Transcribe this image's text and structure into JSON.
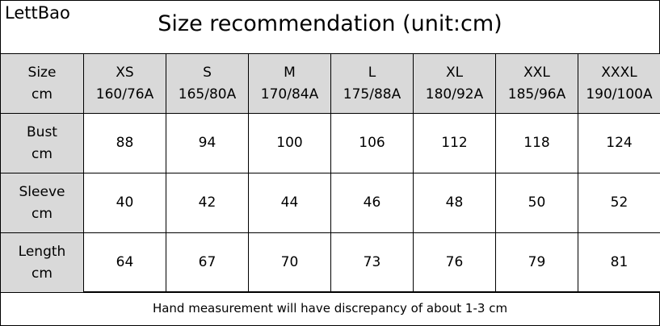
{
  "brand": "LettBao",
  "title": "Size recommendation (unit:cm)",
  "table": {
    "header": [
      [
        "Size",
        "cm"
      ],
      [
        "XS",
        "160/76A"
      ],
      [
        "S",
        "165/80A"
      ],
      [
        "M",
        "170/84A"
      ],
      [
        "L",
        "175/88A"
      ],
      [
        "XL",
        "180/92A"
      ],
      [
        "XXL",
        "185/96A"
      ],
      [
        "XXXL",
        "190/100A"
      ]
    ],
    "rows": [
      {
        "label": [
          "Bust",
          "cm"
        ],
        "values": [
          88,
          94,
          100,
          106,
          112,
          118,
          124
        ]
      },
      {
        "label": [
          "Sleeve",
          "cm"
        ],
        "values": [
          40,
          42,
          44,
          46,
          48,
          50,
          52
        ]
      },
      {
        "label": [
          "Length",
          "cm"
        ],
        "values": [
          64,
          67,
          70,
          73,
          76,
          79,
          81
        ]
      }
    ]
  },
  "footer": "Hand measurement will have discrepancy of about 1-3 cm"
}
